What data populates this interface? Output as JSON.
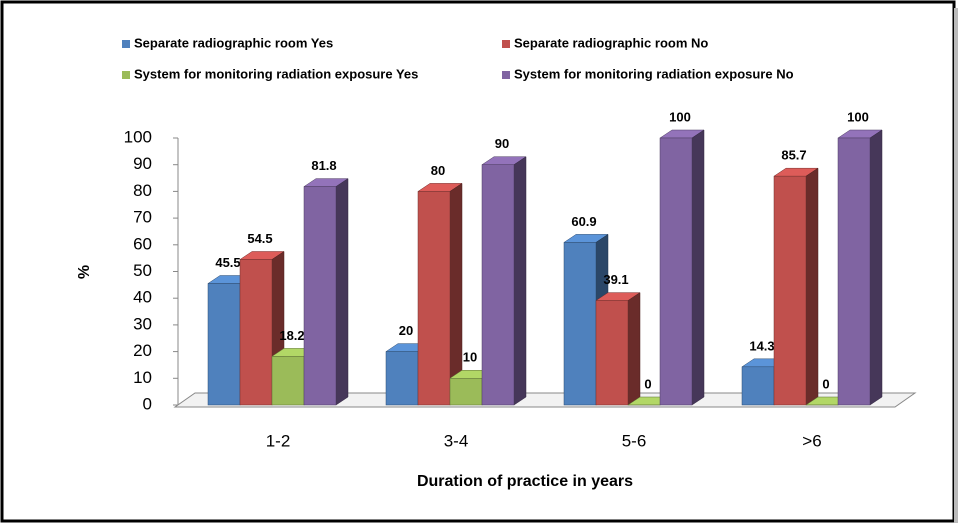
{
  "chart_data": {
    "type": "bar",
    "categories": [
      "1-2",
      "3-4",
      "5-6",
      ">6"
    ],
    "series": [
      {
        "name": "Separate radiographic room Yes",
        "color": "#4f81bd",
        "values": [
          45.5,
          20,
          60.9,
          14.3
        ]
      },
      {
        "name": "Separate radiographic room No",
        "color": "#c0504d",
        "values": [
          54.5,
          80,
          39.1,
          85.7
        ]
      },
      {
        "name": "System for monitoring radiation exposure Yes",
        "color": "#9bbb59",
        "values": [
          18.2,
          10,
          0,
          0
        ]
      },
      {
        "name": "System for monitoring radiation exposure No",
        "color": "#8064a2",
        "values": [
          81.8,
          90,
          100,
          100
        ]
      }
    ],
    "ylabel": "%",
    "xlabel": "Duration of practice in years",
    "ylim": [
      0,
      100
    ],
    "yticks": [
      0,
      10,
      20,
      30,
      40,
      50,
      60,
      70,
      80,
      90,
      100
    ],
    "legend": "top"
  }
}
